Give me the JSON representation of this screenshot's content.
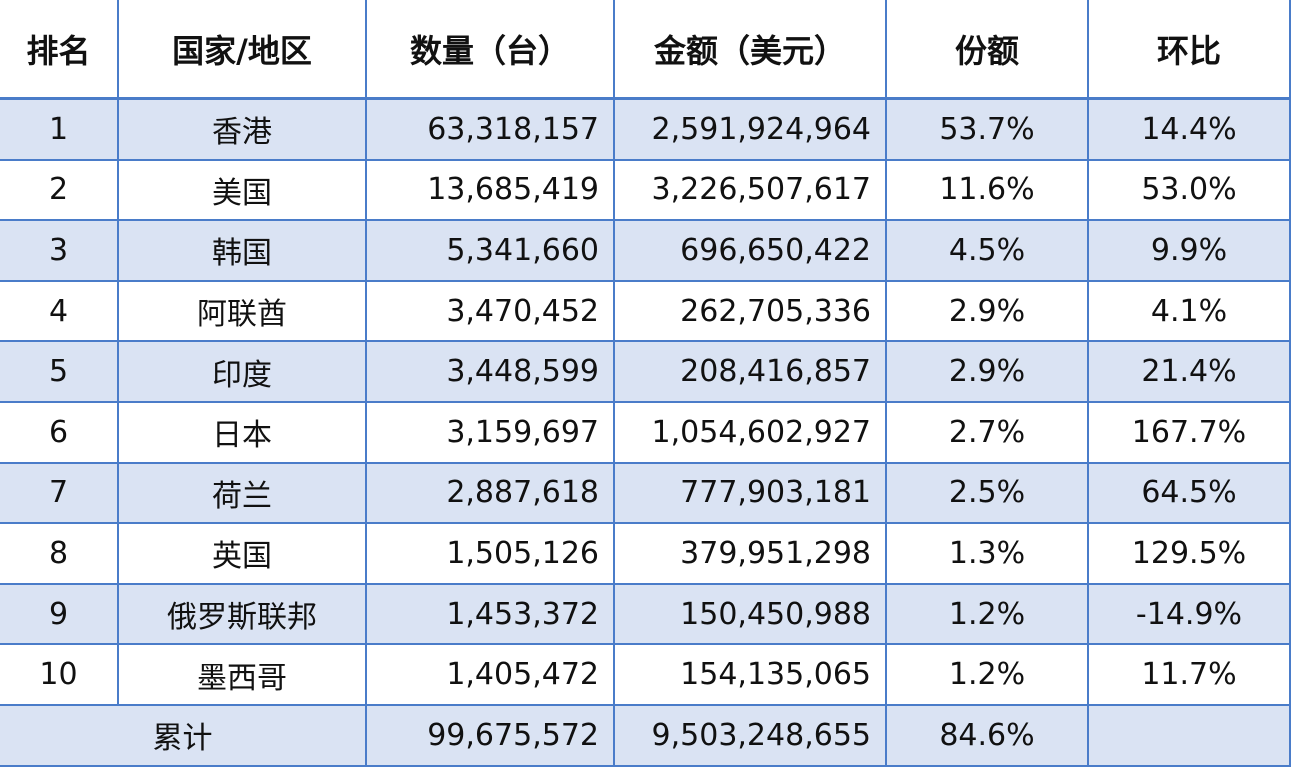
{
  "table": {
    "headers": [
      "排名",
      "国家/地区",
      "数量（台）",
      "金额（美元）",
      "份额",
      "环比"
    ],
    "rows": [
      [
        "1",
        "香港",
        "63,318,157",
        "2,591,924,964",
        "53.7%",
        "14.4%"
      ],
      [
        "2",
        "美国",
        "13,685,419",
        "3,226,507,617",
        "11.6%",
        "53.0%"
      ],
      [
        "3",
        "韩国",
        "5,341,660",
        "696,650,422",
        "4.5%",
        "9.9%"
      ],
      [
        "4",
        "阿联酋",
        "3,470,452",
        "262,705,336",
        "2.9%",
        "4.1%"
      ],
      [
        "5",
        "印度",
        "3,448,599",
        "208,416,857",
        "2.9%",
        "21.4%"
      ],
      [
        "6",
        "日本",
        "3,159,697",
        "1,054,602,927",
        "2.7%",
        "167.7%"
      ],
      [
        "7",
        "荷兰",
        "2,887,618",
        "777,903,181",
        "2.5%",
        "64.5%"
      ],
      [
        "8",
        "英国",
        "1,505,126",
        "379,951,298",
        "1.3%",
        "129.5%"
      ],
      [
        "9",
        "俄罗斯联邦",
        "1,453,372",
        "150,450,988",
        "1.2%",
        "-14.9%"
      ],
      [
        "10",
        "墨西哥",
        "1,405,472",
        "154,135,065",
        "1.2%",
        "11.7%"
      ]
    ],
    "total": [
      "累计",
      "99,675,572",
      "9,503,248,655",
      "84.6%"
    ]
  }
}
